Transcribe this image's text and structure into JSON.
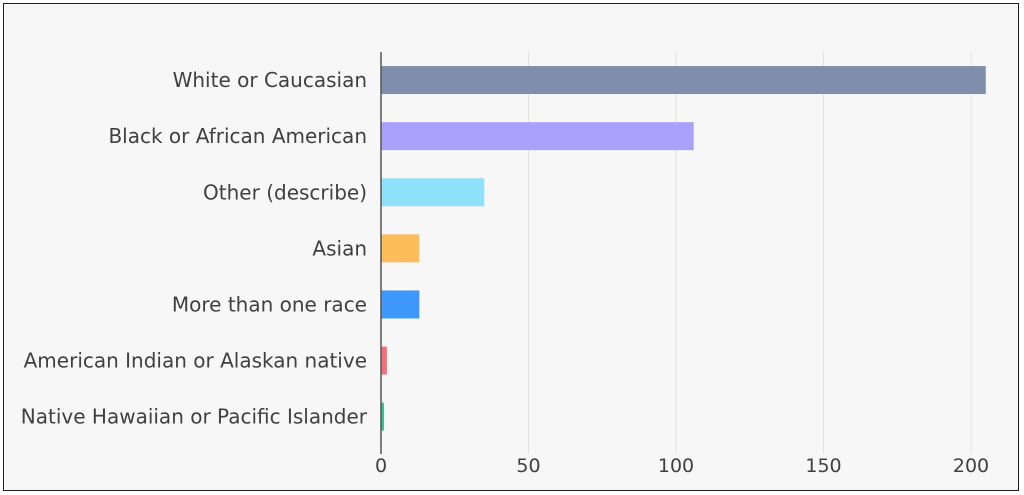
{
  "chart_data": {
    "type": "bar",
    "orientation": "horizontal",
    "title": "",
    "xlabel": "",
    "ylabel": "",
    "categories": [
      "White or Caucasian",
      "Black or African American",
      "Other (describe)",
      "Asian",
      "More than one race",
      "American Indian or Alaskan native",
      "Native Hawaiian or Pacific Islander"
    ],
    "values": [
      205,
      106,
      35,
      13,
      13,
      2,
      1
    ],
    "colors": [
      "#7f8fab",
      "#a9a1fb",
      "#8fe0fb",
      "#fdbd59",
      "#3e98fb",
      "#f76e7d",
      "#35c093"
    ],
    "xlim": [
      0,
      210
    ],
    "xticks": [
      "0",
      "50",
      "100",
      "150",
      "200"
    ],
    "grid": "vertical",
    "legend": "none"
  }
}
